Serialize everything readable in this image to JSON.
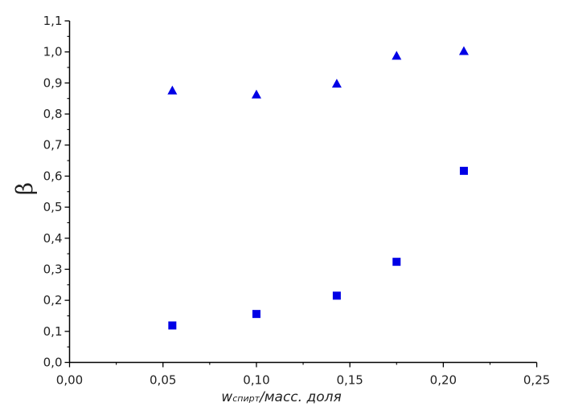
{
  "chart_data": {
    "type": "scatter",
    "title": "",
    "xlabel": {
      "main": "w",
      "subscript": "спирт",
      "rest": "/масс. доля"
    },
    "ylabel": "β",
    "xlim": [
      0,
      0.25
    ],
    "ylim": [
      0,
      1.1
    ],
    "x_ticks": [
      "0,00",
      "0,05",
      "0,10",
      "0,15",
      "0,20",
      "0,25"
    ],
    "y_ticks": [
      "0,0",
      "0,1",
      "0,2",
      "0,3",
      "0,4",
      "0,5",
      "0,6",
      "0,7",
      "0,8",
      "0,9",
      "1,0",
      "1,1"
    ],
    "grid": false,
    "legend": "none",
    "series": [
      {
        "marker": "triangle",
        "color": "#0000e6",
        "x": [
          0.055,
          0.1,
          0.143,
          0.175,
          0.211
        ],
        "y": [
          0.876,
          0.863,
          0.898,
          0.988,
          1.003
        ]
      },
      {
        "marker": "square",
        "color": "#0000e6",
        "x": [
          0.055,
          0.1,
          0.143,
          0.175,
          0.211
        ],
        "y": [
          0.119,
          0.156,
          0.215,
          0.324,
          0.617
        ]
      }
    ]
  }
}
